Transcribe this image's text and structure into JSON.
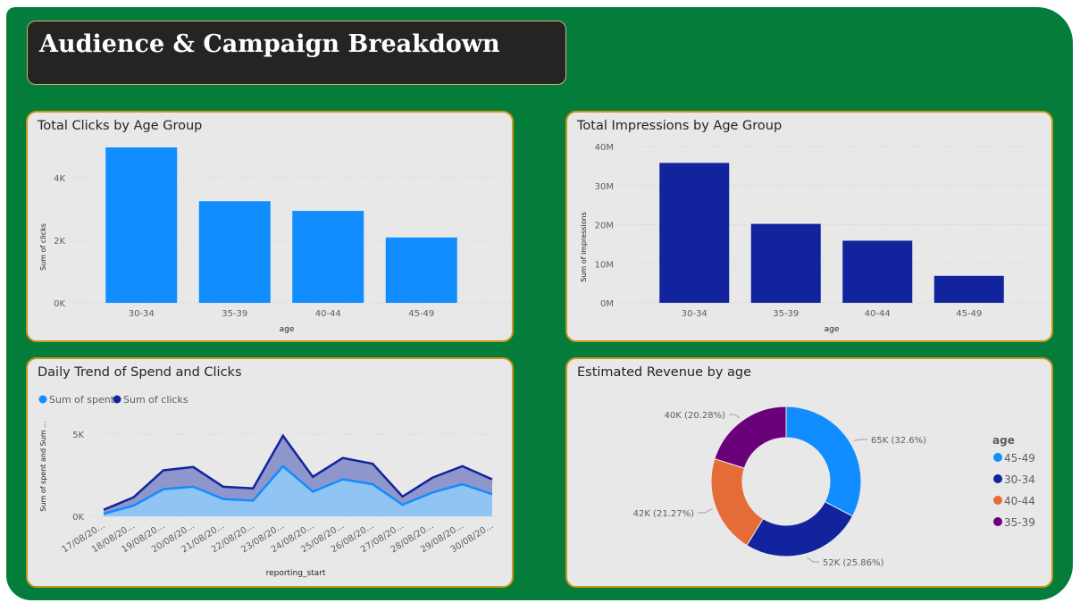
{
  "page": {
    "title": "Audience & Campaign Breakdown"
  },
  "colors": {
    "canvas": "#047d3a",
    "light_blue": "#118dff",
    "dark_blue": "#12239e",
    "orange": "#e66c37",
    "purple": "#6b007b"
  },
  "chart_data": [
    {
      "type": "bar",
      "title": "Total Clicks by Age Group",
      "xlabel": "age",
      "ylabel": "Sum of clicks",
      "categories": [
        "30-34",
        "35-39",
        "40-44",
        "45-49"
      ],
      "values": [
        4970,
        3250,
        2940,
        2090
      ],
      "ylim": [
        0,
        5000
      ],
      "yticks": [
        "0K",
        "2K",
        "4K"
      ],
      "color": "#118dff"
    },
    {
      "type": "bar",
      "title": "Total Impressions by Age Group",
      "xlabel": "age",
      "ylabel": "Sum of impressions",
      "categories": [
        "30-34",
        "35-39",
        "40-44",
        "45-49"
      ],
      "values": [
        35800000,
        20200000,
        15900000,
        6900000
      ],
      "ylim": [
        0,
        40000000
      ],
      "yticks": [
        "0M",
        "10M",
        "20M",
        "30M",
        "40M"
      ],
      "color": "#12239e"
    },
    {
      "type": "area",
      "title": "Daily Trend of Spend and Clicks",
      "xlabel": "reporting_start",
      "ylabel": "Sum of spent and Sum ...",
      "x": [
        "17/08/20...",
        "18/08/20...",
        "19/08/20...",
        "20/08/20...",
        "21/08/20...",
        "22/08/20...",
        "23/08/20...",
        "24/08/20...",
        "25/08/20...",
        "26/08/20...",
        "27/08/20...",
        "28/08/20...",
        "29/08/20...",
        "30/08/20..."
      ],
      "series": [
        {
          "name": "Sum of spent",
          "color": "#118dff",
          "values": [
            150,
            650,
            1650,
            1800,
            1050,
            950,
            3050,
            1500,
            2250,
            1950,
            700,
            1450,
            1950,
            1350
          ]
        },
        {
          "name": "Sum of clicks",
          "color": "#12239e",
          "values": [
            400,
            1150,
            2800,
            3000,
            1800,
            1700,
            4900,
            2400,
            3550,
            3200,
            1200,
            2350,
            3050,
            2250
          ]
        }
      ],
      "ylim": [
        0,
        5000
      ],
      "yticks": [
        "0K",
        "5K"
      ],
      "legend": "top-left"
    },
    {
      "type": "pie",
      "title": "Estimated Revenue by age",
      "legend_title": "age",
      "slices": [
        {
          "label": "45-49",
          "value": 65,
          "data_label": "65K (32.6%)",
          "color": "#118dff"
        },
        {
          "label": "30-34",
          "value": 52,
          "data_label": "52K (25.86%)",
          "color": "#12239e"
        },
        {
          "label": "40-44",
          "value": 42,
          "data_label": "42K (21.27%)",
          "color": "#e66c37"
        },
        {
          "label": "35-39",
          "value": 40,
          "data_label": "40K (20.28%)",
          "color": "#6b007b"
        }
      ],
      "legend": "right"
    }
  ]
}
